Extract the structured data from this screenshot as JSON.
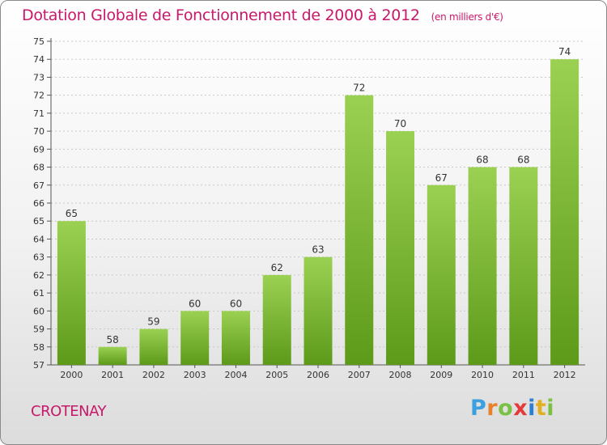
{
  "title": "Dotation Globale de Fonctionnement de 2000 à 2012",
  "subtitle": "(en milliers d'€)",
  "commune": "CROTENAY",
  "logo_text": "Proxiti",
  "colors": {
    "title": "#c8186a",
    "bar_light": "#9bd152",
    "bar_dark": "#5d9a1a",
    "grid": "#c8c8c8"
  },
  "chart_data": {
    "type": "bar",
    "categories": [
      "2000",
      "2001",
      "2002",
      "2003",
      "2004",
      "2005",
      "2006",
      "2007",
      "2008",
      "2009",
      "2010",
      "2011",
      "2012"
    ],
    "values": [
      65,
      58,
      59,
      60,
      60,
      62,
      63,
      72,
      70,
      67,
      68,
      68,
      74
    ],
    "title": "Dotation Globale de Fonctionnement de 2000 à 2012",
    "ylim": [
      57,
      75
    ],
    "yticks": [
      57,
      58,
      59,
      60,
      61,
      62,
      63,
      64,
      65,
      66,
      67,
      68,
      69,
      70,
      71,
      72,
      73,
      74,
      75
    ],
    "grid": true
  }
}
